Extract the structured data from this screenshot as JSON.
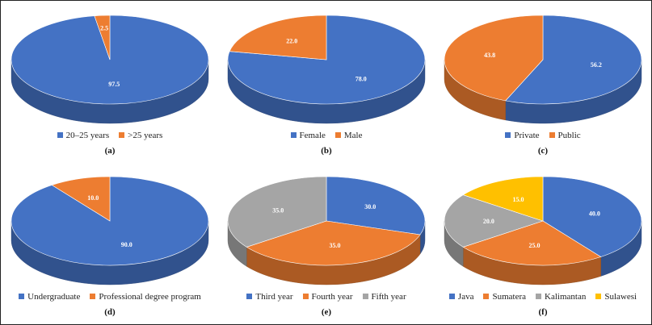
{
  "colors": [
    "#4472C4",
    "#ED7D31",
    "#A5A5A5",
    "#FFC000"
  ],
  "chart_data": [
    {
      "type": "pie",
      "panel_label": "(a)",
      "categories": [
        "20–25 years",
        ">25 years"
      ],
      "values": [
        97.5,
        2.5
      ],
      "start_angle": 0
    },
    {
      "type": "pie",
      "panel_label": "(b)",
      "categories": [
        "Female",
        "Male"
      ],
      "values": [
        78.0,
        22.0
      ],
      "start_angle": 0
    },
    {
      "type": "pie",
      "panel_label": "(c)",
      "categories": [
        "Private",
        "Public"
      ],
      "values": [
        56.2,
        43.8
      ],
      "start_angle": 0
    },
    {
      "type": "pie",
      "panel_label": "(d)",
      "categories": [
        "Undergraduate",
        "Professional degree program"
      ],
      "values": [
        90.0,
        10.0
      ],
      "start_angle": 0
    },
    {
      "type": "pie",
      "panel_label": "(e)",
      "categories": [
        "Third year",
        "Fourth year",
        "Fifth year"
      ],
      "values": [
        30.0,
        35.0,
        35.0
      ],
      "start_angle": 0
    },
    {
      "type": "pie",
      "panel_label": "(f)",
      "categories": [
        "Java",
        "Sumatera",
        "Kalimantan",
        "Sulawesi"
      ],
      "values": [
        40.0,
        25.0,
        20.0,
        15.0
      ],
      "start_angle": 0
    }
  ]
}
